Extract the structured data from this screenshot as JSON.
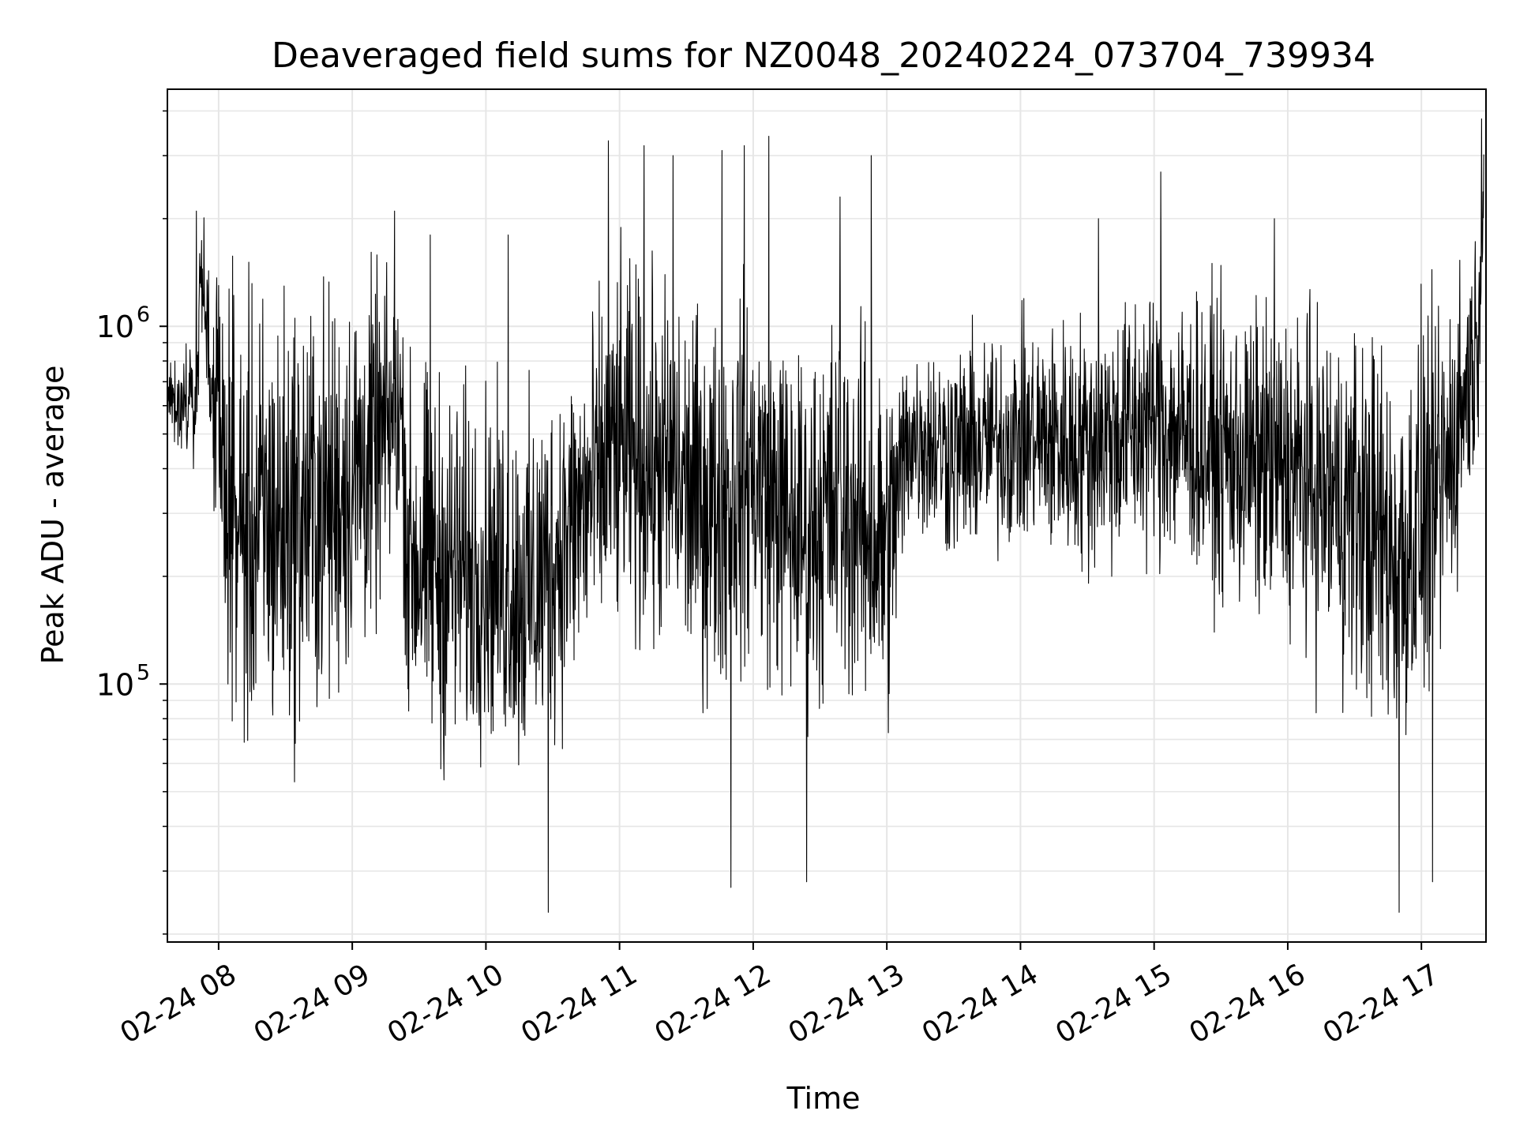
{
  "chart_data": {
    "type": "line",
    "title": "Deaveraged field sums for NZ0048_20240224_073704_739934",
    "xlabel": "Time",
    "ylabel": "Peak ADU - average",
    "x_start": "2024-02-24 07:37:04",
    "x_end": "2024-02-24 17:28:00",
    "xlim": [
      "2024-02-24 07:37",
      "2024-02-24 17:29"
    ],
    "yscale": "log",
    "ylim": [
      19000,
      4600000
    ],
    "xticks": [
      {
        "value": "2024-02-24 08:00",
        "label": "02-24 08"
      },
      {
        "value": "2024-02-24 09:00",
        "label": "02-24 09"
      },
      {
        "value": "2024-02-24 10:00",
        "label": "02-24 10"
      },
      {
        "value": "2024-02-24 11:00",
        "label": "02-24 11"
      },
      {
        "value": "2024-02-24 12:00",
        "label": "02-24 12"
      },
      {
        "value": "2024-02-24 13:00",
        "label": "02-24 13"
      },
      {
        "value": "2024-02-24 14:00",
        "label": "02-24 14"
      },
      {
        "value": "2024-02-24 15:00",
        "label": "02-24 15"
      },
      {
        "value": "2024-02-24 16:00",
        "label": "02-24 16"
      },
      {
        "value": "2024-02-24 17:00",
        "label": "02-24 17"
      }
    ],
    "yticks_major": [
      {
        "value": 100000,
        "base": "10",
        "exp": "5"
      },
      {
        "value": 1000000,
        "base": "10",
        "exp": "6"
      }
    ],
    "grid": true,
    "line_color": "#000000",
    "grid_color": "#e6e6e6",
    "envelope": [
      {
        "t": "07:37",
        "low": 500000,
        "high": 850000
      },
      {
        "t": "07:50",
        "low": 380000,
        "high": 900000
      },
      {
        "t": "07:52",
        "low": 1100000,
        "high": 2100000
      },
      {
        "t": "07:57",
        "low": 280000,
        "high": 1800000
      },
      {
        "t": "08:03",
        "low": 120000,
        "high": 1200000
      },
      {
        "t": "08:10",
        "low": 50000,
        "high": 1400000
      },
      {
        "t": "08:30",
        "low": 55000,
        "high": 1500000
      },
      {
        "t": "08:50",
        "low": 70000,
        "high": 1500000
      },
      {
        "t": "09:10",
        "low": 120000,
        "high": 1600000
      },
      {
        "t": "09:22",
        "low": 250000,
        "high": 1400000
      },
      {
        "t": "09:25",
        "low": 60000,
        "high": 900000
      },
      {
        "t": "09:40",
        "low": 50000,
        "high": 850000
      },
      {
        "t": "10:00",
        "low": 60000,
        "high": 750000
      },
      {
        "t": "10:20",
        "low": 45000,
        "high": 700000
      },
      {
        "t": "10:40",
        "low": 80000,
        "high": 1000000
      },
      {
        "t": "11:00",
        "low": 120000,
        "high": 1700000
      },
      {
        "t": "11:20",
        "low": 100000,
        "high": 1500000
      },
      {
        "t": "11:40",
        "low": 80000,
        "high": 1200000
      },
      {
        "t": "12:00",
        "low": 100000,
        "high": 1500000
      },
      {
        "t": "12:20",
        "low": 70000,
        "high": 1000000
      },
      {
        "t": "12:40",
        "low": 80000,
        "high": 1300000
      },
      {
        "t": "13:00",
        "low": 60000,
        "high": 900000
      },
      {
        "t": "13:10",
        "low": 250000,
        "high": 1000000
      },
      {
        "t": "13:30",
        "low": 200000,
        "high": 1000000
      },
      {
        "t": "14:00",
        "low": 220000,
        "high": 1100000
      },
      {
        "t": "14:30",
        "low": 180000,
        "high": 1200000
      },
      {
        "t": "15:00",
        "low": 200000,
        "high": 1500000
      },
      {
        "t": "15:30",
        "low": 150000,
        "high": 1300000
      },
      {
        "t": "16:00",
        "low": 120000,
        "high": 1300000
      },
      {
        "t": "16:30",
        "low": 80000,
        "high": 1200000
      },
      {
        "t": "16:50",
        "low": 50000,
        "high": 1000000
      },
      {
        "t": "17:10",
        "low": 100000,
        "high": 1400000
      },
      {
        "t": "17:25",
        "low": 400000,
        "high": 2000000
      },
      {
        "t": "17:28",
        "low": 1500000,
        "high": 4200000
      }
    ],
    "spikes": [
      {
        "t": "07:50",
        "value": 2100000
      },
      {
        "t": "09:19",
        "value": 2100000
      },
      {
        "t": "09:35",
        "value": 1800000
      },
      {
        "t": "10:10",
        "value": 1800000
      },
      {
        "t": "10:28",
        "value": 23000
      },
      {
        "t": "10:55",
        "value": 3300000
      },
      {
        "t": "11:11",
        "value": 3200000
      },
      {
        "t": "11:24",
        "value": 3000000
      },
      {
        "t": "11:46",
        "value": 3100000
      },
      {
        "t": "11:50",
        "value": 27000
      },
      {
        "t": "11:56",
        "value": 3200000
      },
      {
        "t": "12:07",
        "value": 3400000
      },
      {
        "t": "12:24",
        "value": 28000
      },
      {
        "t": "12:39",
        "value": 2300000
      },
      {
        "t": "12:53",
        "value": 3000000
      },
      {
        "t": "14:35",
        "value": 2000000
      },
      {
        "t": "15:03",
        "value": 2700000
      },
      {
        "t": "15:54",
        "value": 2000000
      },
      {
        "t": "16:50",
        "value": 23000
      },
      {
        "t": "17:05",
        "value": 28000
      },
      {
        "t": "17:27",
        "value": 3800000
      }
    ]
  }
}
